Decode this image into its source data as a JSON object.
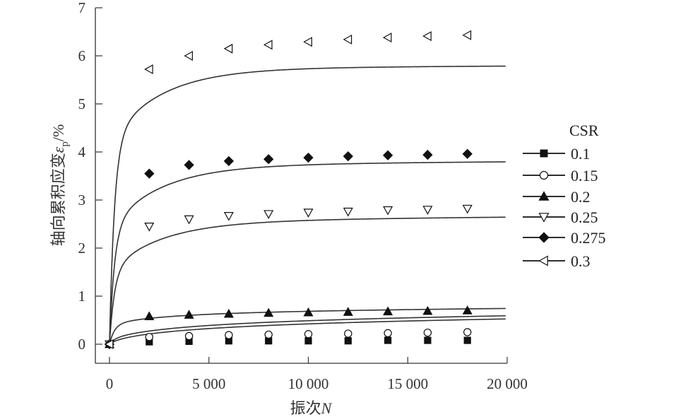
{
  "chart_data": {
    "type": "line",
    "xlabel": {
      "main": "振次",
      "var": "N"
    },
    "ylabel": {
      "main": "轴向累积应变",
      "symbol": "ε",
      "sub": "p",
      "unit": "/%"
    },
    "xlim": [
      0,
      20000
    ],
    "ylim": [
      0,
      7
    ],
    "xticks": [
      0,
      5000,
      10000,
      15000,
      20000
    ],
    "xtick_labels": [
      "0",
      "5 000",
      "10 000",
      "15 000",
      "20 000"
    ],
    "yticks": [
      0,
      1,
      2,
      3,
      4,
      5,
      6,
      7
    ],
    "ytick_labels": [
      "0",
      "1",
      "2",
      "3",
      "4",
      "5",
      "6",
      "7"
    ],
    "grid": false,
    "legend_title": "CSR",
    "legend_position": "right",
    "marker_x": [
      2000,
      4000,
      6000,
      8000,
      10000,
      12000,
      14000,
      16000,
      18000
    ],
    "series": [
      {
        "name": "0.1",
        "marker": "square",
        "curve": {
          "a": 0.035,
          "b": 0.004,
          "c": 0.16
        },
        "marker_values": [
          0.05,
          0.06,
          0.07,
          0.07,
          0.07,
          0.07,
          0.08,
          0.08,
          0.08
        ]
      },
      {
        "name": "0.15",
        "marker": "circle",
        "curve": {
          "a": 0.09,
          "b": 0.015,
          "c": 0.16
        },
        "marker_values": [
          0.15,
          0.17,
          0.19,
          0.2,
          0.21,
          0.22,
          0.23,
          0.24,
          0.25
        ]
      },
      {
        "name": "0.2",
        "marker": "triangle-up",
        "curve": {
          "a": 0.4,
          "b": 0.07,
          "c": 0.09
        },
        "marker_values": [
          0.58,
          0.61,
          0.63,
          0.65,
          0.66,
          0.67,
          0.68,
          0.69,
          0.7
        ]
      },
      {
        "name": "0.25",
        "marker": "triangle-down",
        "curve": {
          "a": 1.5,
          "b": 0.9,
          "c": 0.08
        },
        "marker_values": [
          2.45,
          2.6,
          2.67,
          2.71,
          2.74,
          2.76,
          2.79,
          2.8,
          2.82
        ]
      },
      {
        "name": "0.275",
        "marker": "diamond",
        "curve": {
          "a": 2.4,
          "b": 1.2,
          "c": 0.064
        },
        "marker_values": [
          3.55,
          3.73,
          3.81,
          3.85,
          3.88,
          3.91,
          3.93,
          3.94,
          3.96
        ]
      },
      {
        "name": "0.3",
        "marker": "triangle-left",
        "curve": {
          "a": 4.2,
          "b": 1.45,
          "c": 0.045
        },
        "marker_values": [
          5.72,
          6.0,
          6.15,
          6.23,
          6.29,
          6.34,
          6.38,
          6.41,
          6.43
        ]
      }
    ]
  }
}
